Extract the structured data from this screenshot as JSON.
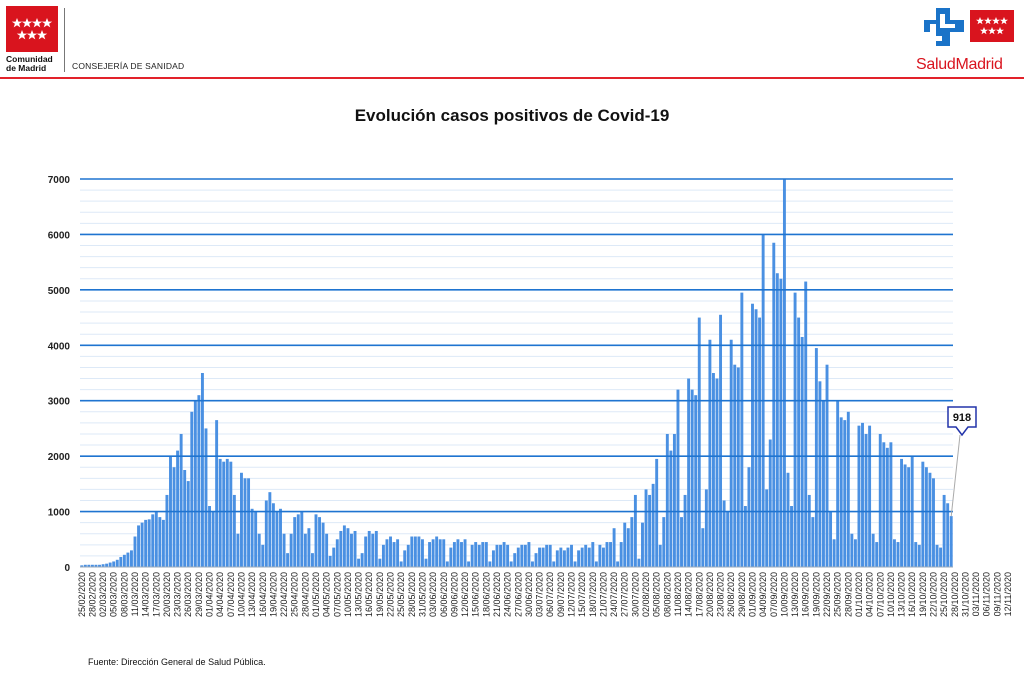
{
  "header": {
    "org_name_line1": "Comunidad",
    "org_name_line2": "de Madrid",
    "department": "CONSEJERÍA DE SANIDAD",
    "brand_part1": "Salud",
    "brand_part2": "Madrid",
    "colors": {
      "brand_red": "#d9141e",
      "brand_blue": "#1a73c8",
      "rule_red": "#e2222a"
    }
  },
  "footer": {
    "source": "Fuente: Dirección General de Salud Pública."
  },
  "chart_data": {
    "type": "bar",
    "title": "Evolución casos positivos de Covid-19",
    "xlabel": "",
    "ylabel": "",
    "ylim": [
      0,
      7000
    ],
    "yticks": [
      0,
      1000,
      2000,
      3000,
      4000,
      5000,
      6000,
      7000
    ],
    "grid": true,
    "legend": "none",
    "bar_color": "#4a90e2",
    "grid_color": "#1f74d0",
    "x_start": "25/02/2020",
    "x_tick_labels": [
      "25/02/2020",
      "28/02/2020",
      "02/03/2020",
      "05/03/2020",
      "08/03/2020",
      "11/03/2020",
      "14/03/2020",
      "17/03/2020",
      "20/03/2020",
      "23/03/2020",
      "26/03/2020",
      "29/03/2020",
      "01/04/2020",
      "04/04/2020",
      "07/04/2020",
      "10/04/2020",
      "13/04/2020",
      "16/04/2020",
      "19/04/2020",
      "22/04/2020",
      "25/04/2020",
      "28/04/2020",
      "01/05/2020",
      "04/05/2020",
      "07/05/2020",
      "10/05/2020",
      "13/05/2020",
      "16/05/2020",
      "19/05/2020",
      "22/05/2020",
      "25/05/2020",
      "28/05/2020",
      "31/05/2020",
      "03/06/2020",
      "06/06/2020",
      "09/06/2020",
      "12/06/2020",
      "15/06/2020",
      "18/06/2020",
      "21/06/2020",
      "24/06/2020",
      "27/06/2020",
      "30/06/2020",
      "03/07/2020",
      "06/07/2020",
      "09/07/2020",
      "12/07/2020",
      "15/07/2020",
      "18/07/2020",
      "21/07/2020",
      "24/07/2020",
      "27/07/2020",
      "30/07/2020",
      "02/08/2020",
      "05/08/2020",
      "08/08/2020",
      "11/08/2020",
      "14/08/2020",
      "17/08/2020",
      "20/08/2020",
      "23/08/2020",
      "26/08/2020",
      "29/08/2020",
      "01/09/2020",
      "04/09/2020",
      "07/09/2020",
      "10/09/2020",
      "13/09/2020",
      "16/09/2020",
      "19/09/2020",
      "22/09/2020",
      "25/09/2020",
      "28/09/2020",
      "01/10/2020",
      "04/10/2020",
      "07/10/2020",
      "10/10/2020",
      "13/10/2020",
      "16/10/2020",
      "19/10/2020",
      "22/10/2020",
      "25/10/2020",
      "28/10/2020",
      "31/10/2020",
      "03/11/2020",
      "06/11/2020",
      "09/11/2020",
      "12/11/2020"
    ],
    "values": [
      30,
      40,
      40,
      40,
      40,
      40,
      50,
      60,
      80,
      100,
      130,
      180,
      220,
      260,
      300,
      550,
      750,
      800,
      850,
      860,
      950,
      1000,
      900,
      850,
      1300,
      2000,
      1800,
      2100,
      2400,
      1750,
      1550,
      2800,
      3000,
      3100,
      3500,
      2500,
      1100,
      1000,
      2650,
      1950,
      1900,
      1950,
      1900,
      1300,
      600,
      1700,
      1600,
      1600,
      1050,
      1000,
      600,
      400,
      1200,
      1350,
      1150,
      1000,
      1050,
      600,
      250,
      600,
      900,
      950,
      1000,
      600,
      700,
      250,
      950,
      900,
      800,
      600,
      200,
      350,
      500,
      650,
      750,
      700,
      600,
      650,
      150,
      250,
      550,
      650,
      600,
      650,
      150,
      400,
      500,
      550,
      450,
      500,
      100,
      300,
      400,
      550,
      550,
      550,
      500,
      150,
      450,
      500,
      550,
      500,
      500,
      100,
      350,
      450,
      500,
      450,
      500,
      100,
      400,
      450,
      400,
      450,
      450,
      100,
      300,
      400,
      400,
      450,
      400,
      100,
      250,
      350,
      400,
      400,
      450,
      100,
      250,
      350,
      350,
      400,
      400,
      100,
      300,
      350,
      300,
      350,
      400,
      100,
      300,
      350,
      400,
      350,
      450,
      100,
      400,
      350,
      450,
      450,
      700,
      100,
      450,
      800,
      700,
      900,
      1300,
      150,
      800,
      1400,
      1300,
      1500,
      1950,
      400,
      900,
      2400,
      2100,
      2400,
      3200,
      900,
      1300,
      3400,
      3200,
      3100,
      4500,
      700,
      1400,
      4100,
      3500,
      3400,
      4550,
      1200,
      1000,
      4100,
      3650,
      3600,
      4950,
      1100,
      1800,
      4750,
      4650,
      4500,
      6000,
      1400,
      2300,
      5850,
      5300,
      5200,
      7000,
      1700,
      1100,
      4950,
      4500,
      4150,
      5150,
      1300,
      900,
      3950,
      3350,
      3000,
      3650,
      1000,
      500,
      3000,
      2700,
      2650,
      2800,
      600,
      500,
      2550,
      2600,
      2400,
      2550,
      600,
      450,
      2400,
      2250,
      2150,
      2250,
      500,
      450,
      1950,
      1850,
      1800,
      2000,
      450,
      400,
      1900,
      1800,
      1700,
      1600,
      400,
      350,
      1300,
      1150,
      918
    ],
    "annotation": {
      "label": "918"
    }
  }
}
